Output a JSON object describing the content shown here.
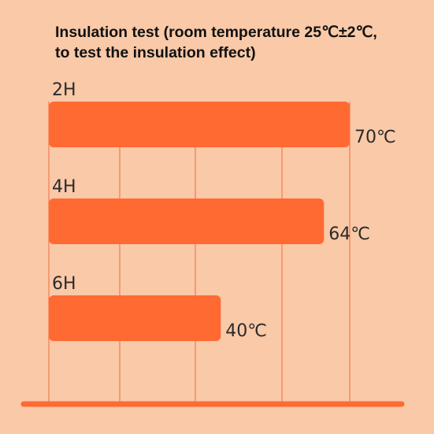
{
  "chart_data": {
    "type": "bar",
    "orientation": "horizontal",
    "title_line1": "Insulation test (room temperature 25℃±2℃,",
    "title_line2": "to test the insulation effect)",
    "categories": [
      "2H",
      "4H",
      "6H"
    ],
    "values": [
      70,
      64,
      40
    ],
    "value_labels": [
      "70℃",
      "64℃",
      "40℃"
    ],
    "grid": true,
    "colors": {
      "background": "#f9c9a8",
      "bar": "#ff6a33",
      "grid": "#f26b3a",
      "baseline": "#ff6a33"
    }
  }
}
